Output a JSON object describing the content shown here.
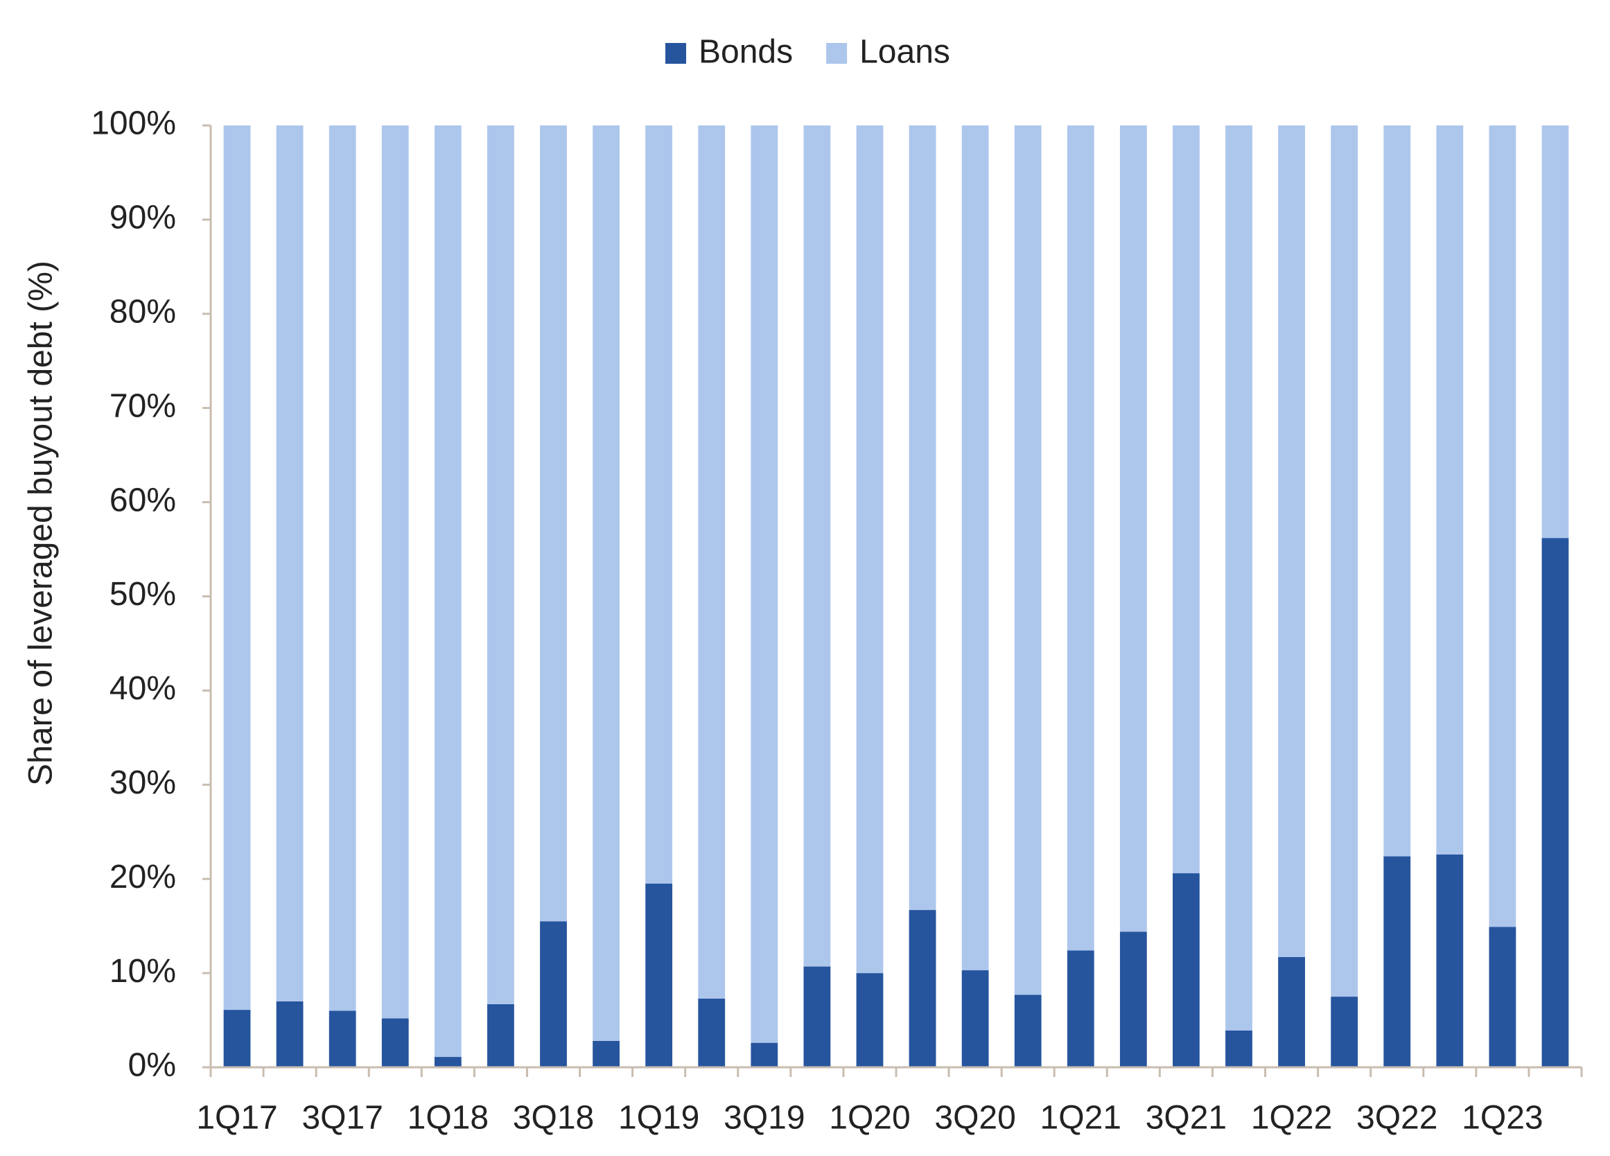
{
  "chart_data": {
    "type": "stacked_bar",
    "y_axis_label": "Share of leveraged buyout debt (%)",
    "categories": [
      "1Q17",
      null,
      "3Q17",
      null,
      "1Q18",
      null,
      "3Q18",
      null,
      "1Q19",
      null,
      "3Q19",
      null,
      "1Q20",
      null,
      "3Q20",
      null,
      "1Q21",
      null,
      "3Q21",
      null,
      "1Q22",
      null,
      "3Q22",
      null,
      "1Q23",
      null
    ],
    "series": [
      {
        "name": "Bonds",
        "color": "#26559e",
        "values": [
          6.1,
          7.0,
          6.0,
          5.2,
          1.1,
          6.7,
          15.5,
          2.8,
          19.5,
          7.3,
          2.6,
          10.7,
          10.0,
          16.7,
          10.3,
          7.7,
          12.4,
          14.4,
          20.6,
          3.9,
          11.7,
          7.5,
          22.4,
          22.6,
          14.9,
          56.2
        ]
      },
      {
        "name": "Loans",
        "color": "#adc6ec",
        "values": [
          93.9,
          93.0,
          94.0,
          94.8,
          98.9,
          93.3,
          84.5,
          97.2,
          80.5,
          92.7,
          97.4,
          89.3,
          90.0,
          83.3,
          89.7,
          92.3,
          87.6,
          85.6,
          79.4,
          96.1,
          88.3,
          92.5,
          77.6,
          77.4,
          85.1,
          43.8
        ]
      }
    ],
    "ylim": [
      0,
      100
    ],
    "yticks": [
      {
        "value": 0,
        "label": "0%"
      },
      {
        "value": 10,
        "label": "10%"
      },
      {
        "value": 20,
        "label": "20%"
      },
      {
        "value": 30,
        "label": "30%"
      },
      {
        "value": 40,
        "label": "40%"
      },
      {
        "value": 50,
        "label": "50%"
      },
      {
        "value": 60,
        "label": "60%"
      },
      {
        "value": 70,
        "label": "70%"
      },
      {
        "value": 80,
        "label": "80%"
      },
      {
        "value": 90,
        "label": "90%"
      },
      {
        "value": 100,
        "label": "100%"
      }
    ],
    "legend": "top",
    "grid": false
  }
}
